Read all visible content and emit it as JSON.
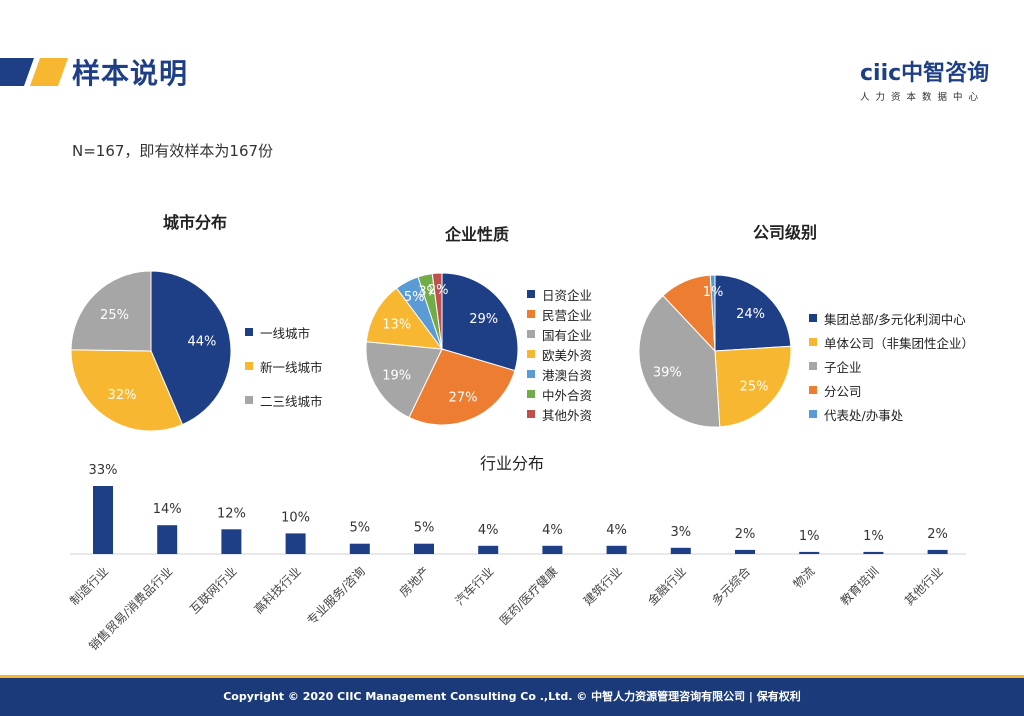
{
  "header": {
    "title": "样本说明"
  },
  "logo": {
    "main": "ciic中智咨询",
    "sub": "人力资本数据中心"
  },
  "note": "N=167，即有效样本为167份",
  "colors": {
    "navy": "#1e3f86",
    "yellow": "#f7b731",
    "gray": "#a6a6a6",
    "orange": "#ed7d31",
    "lightblue": "#5b9bd5",
    "green": "#70ad47",
    "red": "#c0504d"
  },
  "footer": {
    "text": "Copyright © 2020 CIIC Management Consulting Co .,Ltd. © 中智人力资源管理咨询有限公司 | 保有权利"
  },
  "chart_data": [
    {
      "type": "pie",
      "title": "城市分布",
      "labels": [
        "一线城市",
        "新一线城市",
        "二三线城市"
      ],
      "values": [
        44,
        32,
        25
      ],
      "data_labels": [
        "44%",
        "32%",
        "25%"
      ],
      "colors": [
        "#1e3f86",
        "#f7b731",
        "#a6a6a6"
      ],
      "legend": "right"
    },
    {
      "type": "pie",
      "title": "企业性质",
      "labels": [
        "日资企业",
        "民营企业",
        "国有企业",
        "欧美外资",
        "港澳台资",
        "中外合资",
        "其他外资"
      ],
      "values": [
        29,
        27,
        19,
        13,
        5,
        3,
        2
      ],
      "data_labels": [
        "29%",
        "27%",
        "19%",
        "13%",
        "5%",
        "3%",
        "2%"
      ],
      "colors": [
        "#1e3f86",
        "#ed7d31",
        "#a6a6a6",
        "#f7b731",
        "#5b9bd5",
        "#70ad47",
        "#c0504d"
      ],
      "legend": "right"
    },
    {
      "type": "pie",
      "title": "公司级别",
      "labels": [
        "集团总部/多元化利润中心",
        "单体公司（非集团性企业）",
        "子企业",
        "分公司",
        "代表处/办事处"
      ],
      "values": [
        24,
        25,
        39,
        11,
        1
      ],
      "data_labels": [
        "24%",
        "25%",
        "39%",
        "",
        "1%"
      ],
      "colors": [
        "#1e3f86",
        "#f7b731",
        "#a6a6a6",
        "#ed7d31",
        "#5b9bd5"
      ],
      "legend": "right"
    },
    {
      "type": "bar",
      "title": "行业分布",
      "categories": [
        "制造行业",
        "销售贸易/消费品行业",
        "互联网行业",
        "高科技行业",
        "专业服务/咨询",
        "房地产",
        "汽车行业",
        "医药/医疗健康",
        "建筑行业",
        "金融行业",
        "多元综合",
        "物流",
        "教育培训",
        "其他行业"
      ],
      "values": [
        33,
        14,
        12,
        10,
        5,
        5,
        4,
        4,
        4,
        3,
        2,
        1,
        1,
        2
      ],
      "data_labels": [
        "33%",
        "14%",
        "12%",
        "10%",
        "5%",
        "5%",
        "4%",
        "4%",
        "4%",
        "3%",
        "2%",
        "1%",
        "1%",
        "2%"
      ],
      "color": "#1e3f86",
      "ylim": [
        0,
        33
      ]
    }
  ]
}
